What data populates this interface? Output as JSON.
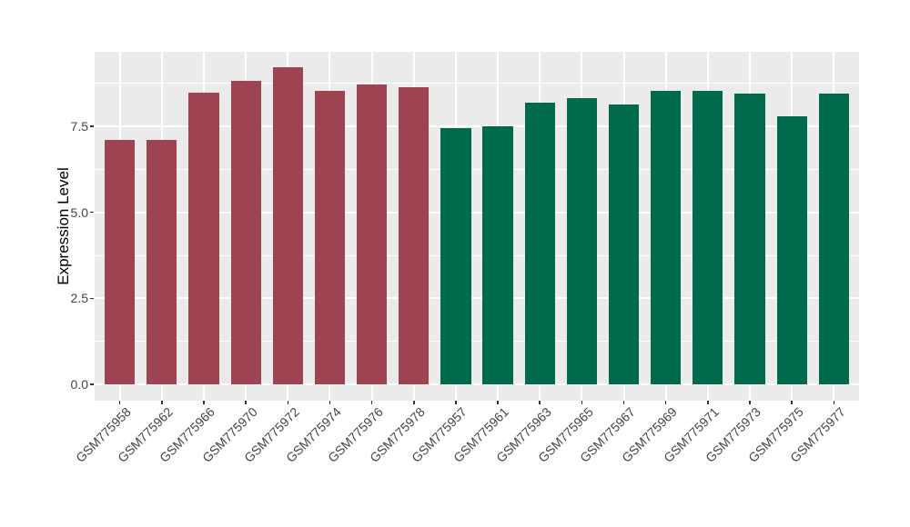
{
  "chart_data": {
    "type": "bar",
    "title": "",
    "xlabel": "",
    "ylabel": "Expression Level",
    "categories": [
      "GSM775958",
      "GSM775962",
      "GSM775966",
      "GSM775970",
      "GSM775972",
      "GSM775974",
      "GSM775976",
      "GSM775978",
      "GSM775957",
      "GSM775961",
      "GSM775963",
      "GSM775965",
      "GSM775967",
      "GSM775969",
      "GSM775971",
      "GSM775973",
      "GSM775975",
      "GSM775977"
    ],
    "values": [
      7.1,
      7.1,
      8.48,
      8.81,
      9.22,
      8.54,
      8.72,
      8.64,
      7.46,
      7.49,
      8.18,
      8.31,
      8.14,
      8.52,
      8.53,
      8.45,
      7.8,
      8.45
    ],
    "groups": [
      "A",
      "A",
      "A",
      "A",
      "A",
      "A",
      "A",
      "A",
      "B",
      "B",
      "B",
      "B",
      "B",
      "B",
      "B",
      "B",
      "B",
      "B"
    ],
    "group_colors": {
      "A": "#9D4351",
      "B": "#006B4C"
    },
    "yticks": [
      0.0,
      2.5,
      5.0,
      7.5
    ],
    "ytick_labels": [
      "0.0",
      "2.5",
      "5.0",
      "7.5"
    ],
    "minor_yticks": [
      1.25,
      3.75,
      6.25,
      8.75
    ],
    "ylim": [
      -0.475,
      9.665
    ],
    "bar_rel_width": 0.72,
    "panel_background": "#EBEBEB",
    "grid_color": "#FFFFFF",
    "tick_color": "#333333",
    "axis_text_color": "#454545",
    "legend": "none",
    "grid": "on"
  }
}
